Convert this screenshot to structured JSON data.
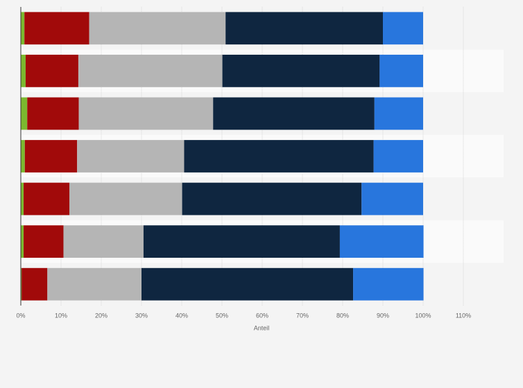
{
  "chart_data": {
    "type": "stacked_barh",
    "x_label": "Anteil",
    "categories": [
      null,
      null,
      null,
      null,
      null,
      null,
      null
    ],
    "series": [
      {
        "color": "#7cb82f",
        "values": [
          0.9,
          1.2,
          1.6,
          1.0,
          0.7,
          0.7,
          0.2
        ]
      },
      {
        "color": "#a10a0a",
        "values": [
          16.1,
          13.1,
          12.8,
          13.0,
          11.4,
          9.9,
          6.4
        ]
      },
      {
        "color": "#b5b5b5",
        "values": [
          33.9,
          35.8,
          33.4,
          26.6,
          28.0,
          19.9,
          23.4
        ]
      },
      {
        "color": "#0f2640",
        "values": [
          39.1,
          39.1,
          40.1,
          47.1,
          44.6,
          48.8,
          52.6
        ]
      },
      {
        "color": "#2876dd",
        "values": [
          10.0,
          10.8,
          12.1,
          12.3,
          15.3,
          20.8,
          17.5
        ]
      }
    ],
    "xlim": [
      0,
      120
    ],
    "xticks": [
      {
        "value": 0,
        "label": "0%"
      },
      {
        "value": 10,
        "label": "10%"
      },
      {
        "value": 20,
        "label": "20%"
      },
      {
        "value": 30,
        "label": "30%"
      },
      {
        "value": 40,
        "label": "40%"
      },
      {
        "value": 50,
        "label": "50%"
      },
      {
        "value": 60,
        "label": "60%"
      },
      {
        "value": 70,
        "label": "70%"
      },
      {
        "value": 80,
        "label": "80%"
      },
      {
        "value": 90,
        "label": "90%"
      },
      {
        "value": 100,
        "label": "100%"
      },
      {
        "value": 110,
        "label": "110%"
      }
    ],
    "grid": true
  }
}
